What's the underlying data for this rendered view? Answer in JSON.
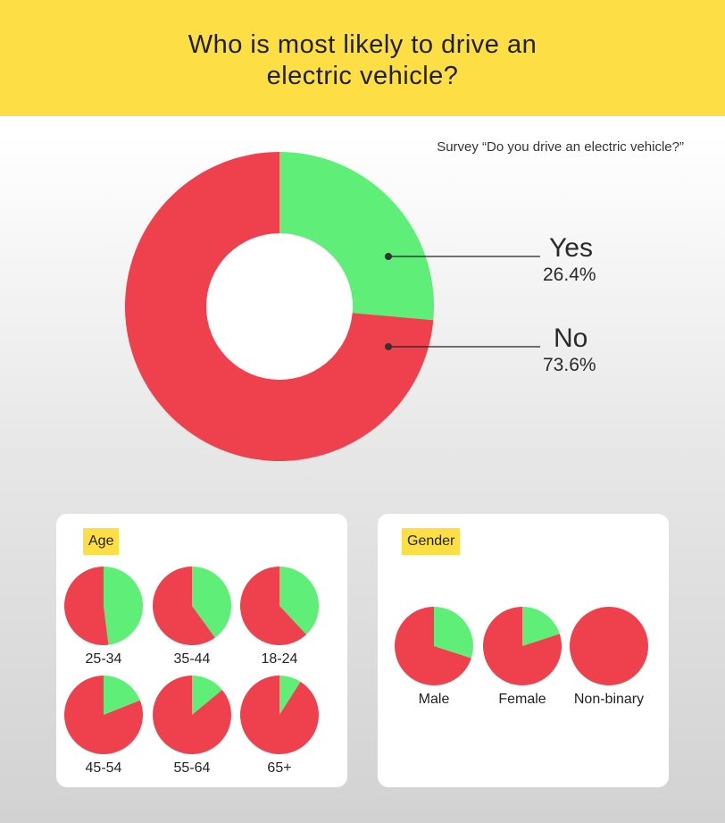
{
  "header": {
    "title_line1": "Who is most likely to drive an",
    "title_line2": "electric vehicle?"
  },
  "subtitle": "Survey “Do you drive an electric vehicle?”",
  "colors": {
    "yes": "#5fee78",
    "no": "#ef404e",
    "accent": "#fddf45"
  },
  "chart_data": [
    {
      "type": "pie",
      "title": "Who is most likely to drive an electric vehicle?",
      "categories": [
        "Yes",
        "No"
      ],
      "values": [
        26.4,
        73.6
      ],
      "value_labels": [
        "26.4%",
        "73.6%"
      ]
    },
    {
      "type": "pie",
      "title": "Age",
      "groups": [
        "25-34",
        "35-44",
        "18-24",
        "45-54",
        "55-64",
        "65+"
      ],
      "series": [
        {
          "name": "Yes",
          "values": [
            48,
            40,
            38,
            19,
            14,
            9
          ]
        },
        {
          "name": "No",
          "values": [
            52,
            60,
            62,
            81,
            86,
            91
          ]
        }
      ]
    },
    {
      "type": "pie",
      "title": "Gender",
      "groups": [
        "Male",
        "Female",
        "Non-binary"
      ],
      "series": [
        {
          "name": "Yes",
          "values": [
            30,
            20,
            0
          ]
        },
        {
          "name": "No",
          "values": [
            70,
            80,
            100
          ]
        }
      ]
    }
  ]
}
